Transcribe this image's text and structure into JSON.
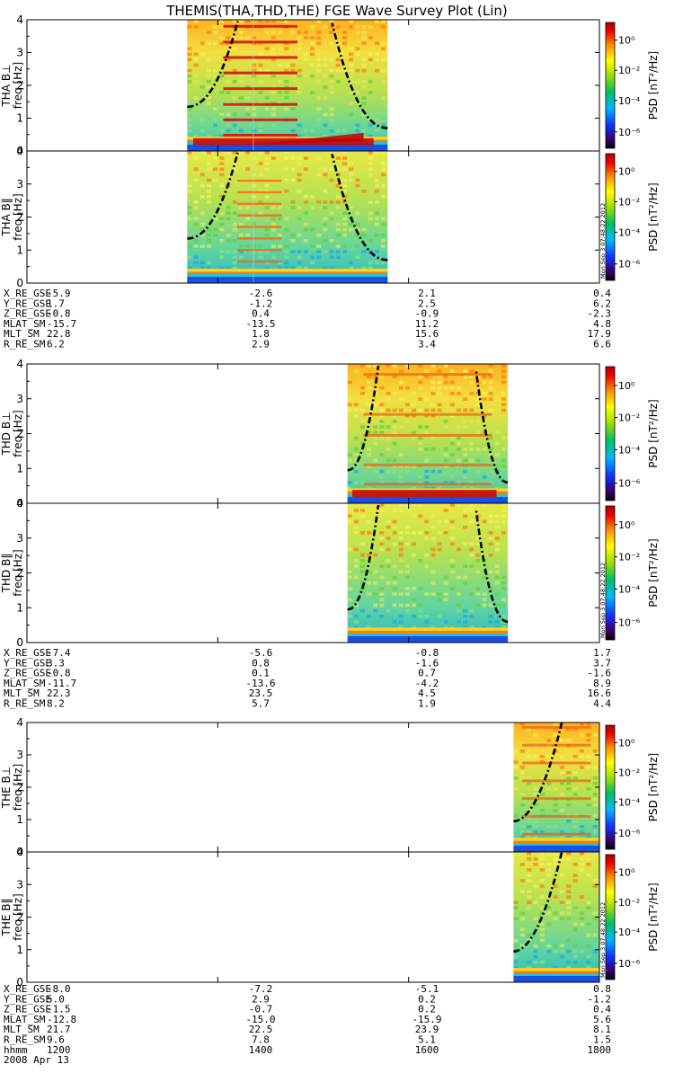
{
  "title": "THEMIS(THA,THD,THE) FGE Wave Survey Plot (Lin)",
  "colorbar_label": "PSD [nT²/Hz]",
  "colorbar_ticks": [
    "10⁰",
    "10⁻²",
    "10⁻⁴",
    "10⁻⁶"
  ],
  "stamp": "Mon Sep  3 07:48:22 2012",
  "colors": {
    "background_field": "#9be05a",
    "low_band": "#ffd21a",
    "line": "#000000"
  },
  "chart_data": [
    {
      "type": "heatmap",
      "probe": "THA",
      "panels": [
        {
          "ylabel_probe": "THA B⊥",
          "ylabel_unit": "freq [Hz]",
          "yticks": [
            "0",
            "1",
            "2",
            "3",
            "4"
          ],
          "data_range": [
            0.28,
            0.63
          ],
          "cyclotron_curves": true
        },
        {
          "ylabel_probe": "THA B‖",
          "ylabel_unit": "freq [Hz]",
          "yticks": [
            "0",
            "1",
            "2",
            "3",
            "4"
          ],
          "data_range": [
            0.28,
            0.63
          ],
          "cyclotron_curves": true
        }
      ],
      "ephemeris": {
        "rows": [
          {
            "label": "X_RE_GSE",
            "values": [
              "-5.9",
              "-2.6",
              "2.1",
              "0.4"
            ]
          },
          {
            "label": "Y_RE_GSE",
            "values": [
              "1.7",
              "-1.2",
              "2.5",
              "6.2"
            ]
          },
          {
            "label": "Z_RE_GSE",
            "values": [
              "-0.8",
              "0.4",
              "-0.9",
              "-2.3"
            ]
          },
          {
            "label": "MLAT_SM",
            "values": [
              "-15.7",
              "-13.5",
              "11.2",
              "4.8"
            ]
          },
          {
            "label": "MLT_SM",
            "values": [
              "22.8",
              "1.8",
              "15.6",
              "17.9"
            ]
          },
          {
            "label": "R_RE_SM",
            "values": [
              "6.2",
              "2.9",
              "3.4",
              "6.6"
            ]
          }
        ]
      }
    },
    {
      "type": "heatmap",
      "probe": "THD",
      "panels": [
        {
          "ylabel_probe": "THD B⊥",
          "ylabel_unit": "freq [Hz]",
          "yticks": [
            "0",
            "1",
            "2",
            "3",
            "4"
          ],
          "data_range": [
            0.56,
            0.84
          ],
          "cyclotron_curves": true
        },
        {
          "ylabel_probe": "THD B‖",
          "ylabel_unit": "freq [Hz]",
          "yticks": [
            "0",
            "1",
            "2",
            "3",
            "4"
          ],
          "data_range": [
            0.56,
            0.84
          ],
          "cyclotron_curves": true
        }
      ],
      "ephemeris": {
        "rows": [
          {
            "label": "X_RE_GSE",
            "values": [
              "-7.4",
              "-5.6",
              "-0.8",
              "1.7"
            ]
          },
          {
            "label": "Y_RE_GSE",
            "values": [
              "3.3",
              "0.8",
              "-1.6",
              "3.7"
            ]
          },
          {
            "label": "Z_RE_GSE",
            "values": [
              "-0.8",
              "0.1",
              "0.7",
              "-1.6"
            ]
          },
          {
            "label": "MLAT_SM",
            "values": [
              "-11.7",
              "-13.6",
              "-4.2",
              "8.9"
            ]
          },
          {
            "label": "MLT_SM",
            "values": [
              "22.3",
              "23.5",
              "4.5",
              "16.6"
            ]
          },
          {
            "label": "R_RE_SM",
            "values": [
              "8.2",
              "5.7",
              "1.9",
              "4.4"
            ]
          }
        ]
      }
    },
    {
      "type": "heatmap",
      "probe": "THE",
      "panels": [
        {
          "ylabel_probe": "THE B⊥",
          "ylabel_unit": "freq [Hz]",
          "yticks": [
            "0",
            "1",
            "2",
            "3",
            "4"
          ],
          "data_range": [
            0.85,
            1.0
          ],
          "cyclotron_curves": true
        },
        {
          "ylabel_probe": "THE B‖",
          "ylabel_unit": "freq [Hz]",
          "yticks": [
            "0",
            "1",
            "2",
            "3",
            "4"
          ],
          "data_range": [
            0.85,
            1.0
          ],
          "cyclotron_curves": true
        }
      ],
      "ephemeris": {
        "rows": [
          {
            "label": "X_RE_GSE",
            "values": [
              "-8.0",
              "-7.2",
              "-5.1",
              "0.8"
            ]
          },
          {
            "label": "Y_RE_GSE",
            "values": [
              "5.0",
              "2.9",
              "0.2",
              "-1.2"
            ]
          },
          {
            "label": "Z_RE_GSE",
            "values": [
              "-1.5",
              "-0.7",
              "0.2",
              "0.4"
            ]
          },
          {
            "label": "MLAT_SM",
            "values": [
              "-12.8",
              "-15.0",
              "-15.9",
              "5.6"
            ]
          },
          {
            "label": "MLT_SM",
            "values": [
              "21.7",
              "22.5",
              "23.9",
              "8.1"
            ]
          },
          {
            "label": "R_RE_SM",
            "values": [
              "9.6",
              "7.8",
              "5.1",
              "1.5"
            ]
          },
          {
            "label": "hhmm",
            "values": [
              "1200",
              "1400",
              "1600",
              "1800"
            ]
          }
        ],
        "date": "2008 Apr 13"
      }
    }
  ]
}
